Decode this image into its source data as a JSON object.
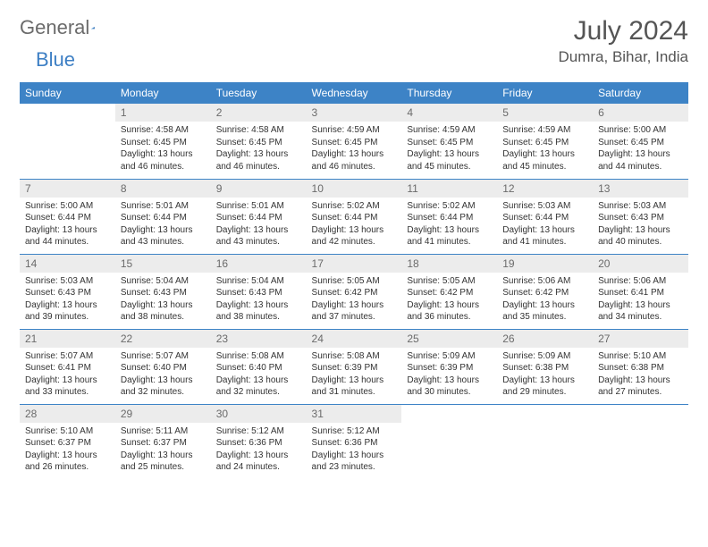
{
  "logo": {
    "text1": "General",
    "text2": "Blue"
  },
  "title": "July 2024",
  "location": "Dumra, Bihar, India",
  "colors": {
    "header_bg": "#3d83c6",
    "header_text": "#ffffff",
    "daynum_bg": "#ececec",
    "border": "#3d83c6",
    "text": "#333333"
  },
  "weekdays": [
    "Sunday",
    "Monday",
    "Tuesday",
    "Wednesday",
    "Thursday",
    "Friday",
    "Saturday"
  ],
  "weeks": [
    [
      {
        "n": "",
        "sr": "",
        "ss": "",
        "dl": "",
        "empty": true
      },
      {
        "n": "1",
        "sr": "Sunrise: 4:58 AM",
        "ss": "Sunset: 6:45 PM",
        "dl": "Daylight: 13 hours and 46 minutes."
      },
      {
        "n": "2",
        "sr": "Sunrise: 4:58 AM",
        "ss": "Sunset: 6:45 PM",
        "dl": "Daylight: 13 hours and 46 minutes."
      },
      {
        "n": "3",
        "sr": "Sunrise: 4:59 AM",
        "ss": "Sunset: 6:45 PM",
        "dl": "Daylight: 13 hours and 46 minutes."
      },
      {
        "n": "4",
        "sr": "Sunrise: 4:59 AM",
        "ss": "Sunset: 6:45 PM",
        "dl": "Daylight: 13 hours and 45 minutes."
      },
      {
        "n": "5",
        "sr": "Sunrise: 4:59 AM",
        "ss": "Sunset: 6:45 PM",
        "dl": "Daylight: 13 hours and 45 minutes."
      },
      {
        "n": "6",
        "sr": "Sunrise: 5:00 AM",
        "ss": "Sunset: 6:45 PM",
        "dl": "Daylight: 13 hours and 44 minutes."
      }
    ],
    [
      {
        "n": "7",
        "sr": "Sunrise: 5:00 AM",
        "ss": "Sunset: 6:44 PM",
        "dl": "Daylight: 13 hours and 44 minutes."
      },
      {
        "n": "8",
        "sr": "Sunrise: 5:01 AM",
        "ss": "Sunset: 6:44 PM",
        "dl": "Daylight: 13 hours and 43 minutes."
      },
      {
        "n": "9",
        "sr": "Sunrise: 5:01 AM",
        "ss": "Sunset: 6:44 PM",
        "dl": "Daylight: 13 hours and 43 minutes."
      },
      {
        "n": "10",
        "sr": "Sunrise: 5:02 AM",
        "ss": "Sunset: 6:44 PM",
        "dl": "Daylight: 13 hours and 42 minutes."
      },
      {
        "n": "11",
        "sr": "Sunrise: 5:02 AM",
        "ss": "Sunset: 6:44 PM",
        "dl": "Daylight: 13 hours and 41 minutes."
      },
      {
        "n": "12",
        "sr": "Sunrise: 5:03 AM",
        "ss": "Sunset: 6:44 PM",
        "dl": "Daylight: 13 hours and 41 minutes."
      },
      {
        "n": "13",
        "sr": "Sunrise: 5:03 AM",
        "ss": "Sunset: 6:43 PM",
        "dl": "Daylight: 13 hours and 40 minutes."
      }
    ],
    [
      {
        "n": "14",
        "sr": "Sunrise: 5:03 AM",
        "ss": "Sunset: 6:43 PM",
        "dl": "Daylight: 13 hours and 39 minutes."
      },
      {
        "n": "15",
        "sr": "Sunrise: 5:04 AM",
        "ss": "Sunset: 6:43 PM",
        "dl": "Daylight: 13 hours and 38 minutes."
      },
      {
        "n": "16",
        "sr": "Sunrise: 5:04 AM",
        "ss": "Sunset: 6:43 PM",
        "dl": "Daylight: 13 hours and 38 minutes."
      },
      {
        "n": "17",
        "sr": "Sunrise: 5:05 AM",
        "ss": "Sunset: 6:42 PM",
        "dl": "Daylight: 13 hours and 37 minutes."
      },
      {
        "n": "18",
        "sr": "Sunrise: 5:05 AM",
        "ss": "Sunset: 6:42 PM",
        "dl": "Daylight: 13 hours and 36 minutes."
      },
      {
        "n": "19",
        "sr": "Sunrise: 5:06 AM",
        "ss": "Sunset: 6:42 PM",
        "dl": "Daylight: 13 hours and 35 minutes."
      },
      {
        "n": "20",
        "sr": "Sunrise: 5:06 AM",
        "ss": "Sunset: 6:41 PM",
        "dl": "Daylight: 13 hours and 34 minutes."
      }
    ],
    [
      {
        "n": "21",
        "sr": "Sunrise: 5:07 AM",
        "ss": "Sunset: 6:41 PM",
        "dl": "Daylight: 13 hours and 33 minutes."
      },
      {
        "n": "22",
        "sr": "Sunrise: 5:07 AM",
        "ss": "Sunset: 6:40 PM",
        "dl": "Daylight: 13 hours and 32 minutes."
      },
      {
        "n": "23",
        "sr": "Sunrise: 5:08 AM",
        "ss": "Sunset: 6:40 PM",
        "dl": "Daylight: 13 hours and 32 minutes."
      },
      {
        "n": "24",
        "sr": "Sunrise: 5:08 AM",
        "ss": "Sunset: 6:39 PM",
        "dl": "Daylight: 13 hours and 31 minutes."
      },
      {
        "n": "25",
        "sr": "Sunrise: 5:09 AM",
        "ss": "Sunset: 6:39 PM",
        "dl": "Daylight: 13 hours and 30 minutes."
      },
      {
        "n": "26",
        "sr": "Sunrise: 5:09 AM",
        "ss": "Sunset: 6:38 PM",
        "dl": "Daylight: 13 hours and 29 minutes."
      },
      {
        "n": "27",
        "sr": "Sunrise: 5:10 AM",
        "ss": "Sunset: 6:38 PM",
        "dl": "Daylight: 13 hours and 27 minutes."
      }
    ],
    [
      {
        "n": "28",
        "sr": "Sunrise: 5:10 AM",
        "ss": "Sunset: 6:37 PM",
        "dl": "Daylight: 13 hours and 26 minutes."
      },
      {
        "n": "29",
        "sr": "Sunrise: 5:11 AM",
        "ss": "Sunset: 6:37 PM",
        "dl": "Daylight: 13 hours and 25 minutes."
      },
      {
        "n": "30",
        "sr": "Sunrise: 5:12 AM",
        "ss": "Sunset: 6:36 PM",
        "dl": "Daylight: 13 hours and 24 minutes."
      },
      {
        "n": "31",
        "sr": "Sunrise: 5:12 AM",
        "ss": "Sunset: 6:36 PM",
        "dl": "Daylight: 13 hours and 23 minutes."
      },
      {
        "n": "",
        "sr": "",
        "ss": "",
        "dl": "",
        "empty": true
      },
      {
        "n": "",
        "sr": "",
        "ss": "",
        "dl": "",
        "empty": true
      },
      {
        "n": "",
        "sr": "",
        "ss": "",
        "dl": "",
        "empty": true
      }
    ]
  ]
}
